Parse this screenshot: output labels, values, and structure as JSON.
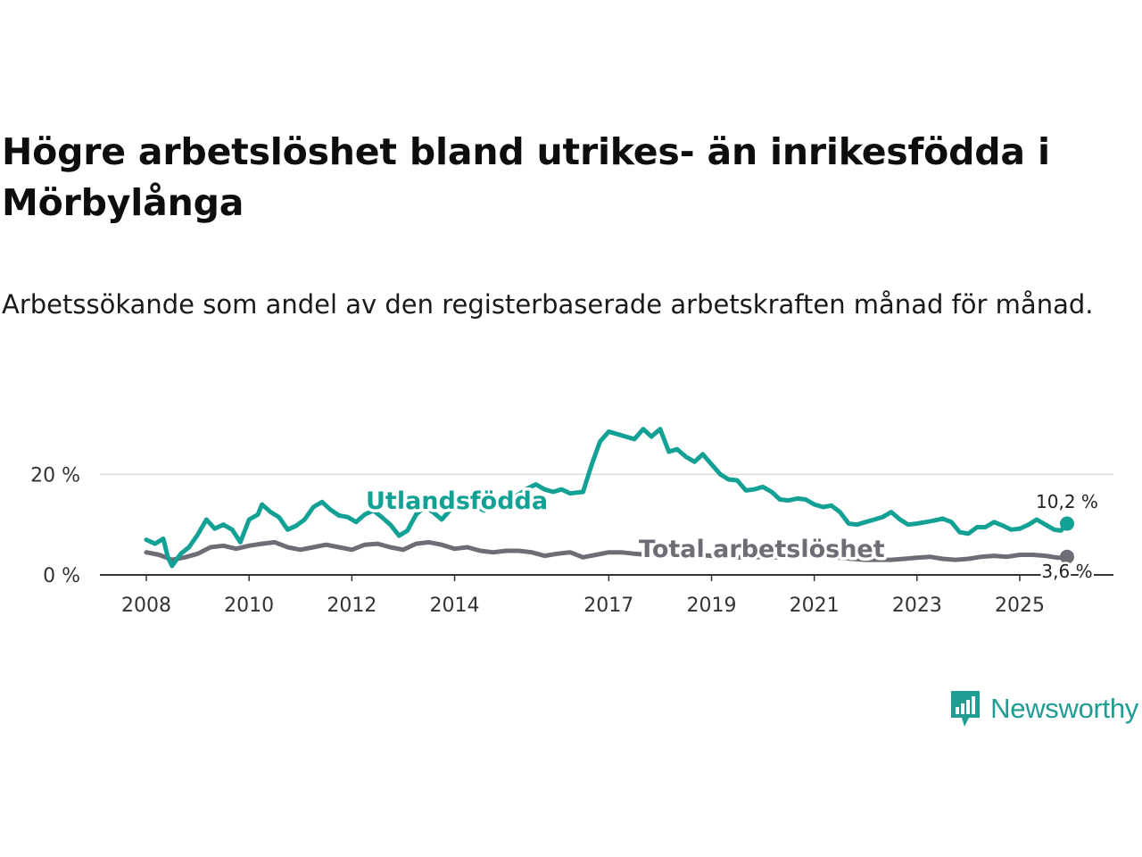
{
  "title": "Högre arbetslöshet bland utrikes- än inrikesfödda i Mörbylånga",
  "subtitle": "Arbetssökande som andel av den registerbaserade arbetskraften månad för månad.",
  "brand": {
    "name": "Newsworthy"
  },
  "colors": {
    "foreign": "#14a195",
    "total": "#6e6c74",
    "grid": "#dddddd",
    "axis": "#333333"
  },
  "chart_data": {
    "type": "line",
    "title": "Högre arbetslöshet bland utrikes- än inrikesfödda i Mörbylånga",
    "xlabel": "",
    "ylabel": "",
    "ylim": [
      0,
      30
    ],
    "x_range": [
      2008.0,
      2025.92
    ],
    "x_ticks": [
      "2008",
      "2010",
      "2012",
      "2014",
      "2017",
      "2019",
      "2021",
      "2023",
      "2025"
    ],
    "y_ticks": [
      {
        "value": 0,
        "label": "0 %"
      },
      {
        "value": 20,
        "label": "20 %"
      }
    ],
    "series": [
      {
        "name": "Utlandsfödda",
        "label": "Utlandsfödda",
        "color": "#14a195",
        "end_label": "10,2 %",
        "points": [
          [
            2008.0,
            7.0
          ],
          [
            2008.17,
            6.2
          ],
          [
            2008.33,
            7.2
          ],
          [
            2008.42,
            3.5
          ],
          [
            2008.5,
            1.8
          ],
          [
            2008.67,
            4.2
          ],
          [
            2008.83,
            5.5
          ],
          [
            2009.0,
            8.0
          ],
          [
            2009.17,
            11.0
          ],
          [
            2009.33,
            9.2
          ],
          [
            2009.5,
            10.0
          ],
          [
            2009.67,
            9.0
          ],
          [
            2009.83,
            6.5
          ],
          [
            2010.0,
            11.0
          ],
          [
            2010.17,
            12.0
          ],
          [
            2010.25,
            14.0
          ],
          [
            2010.42,
            12.5
          ],
          [
            2010.58,
            11.5
          ],
          [
            2010.75,
            9.0
          ],
          [
            2010.92,
            9.8
          ],
          [
            2011.08,
            11.0
          ],
          [
            2011.25,
            13.5
          ],
          [
            2011.42,
            14.5
          ],
          [
            2011.58,
            13.0
          ],
          [
            2011.75,
            11.8
          ],
          [
            2011.92,
            11.5
          ],
          [
            2012.08,
            10.5
          ],
          [
            2012.25,
            12.0
          ],
          [
            2012.42,
            12.8
          ],
          [
            2012.58,
            11.5
          ],
          [
            2012.75,
            10.0
          ],
          [
            2012.92,
            7.8
          ],
          [
            2013.08,
            8.8
          ],
          [
            2013.25,
            12.0
          ],
          [
            2013.42,
            13.5
          ],
          [
            2013.58,
            12.5
          ],
          [
            2013.75,
            11.0
          ],
          [
            2013.92,
            13.0
          ],
          [
            2014.08,
            14.5
          ],
          [
            2014.25,
            14.8
          ],
          [
            2014.42,
            13.5
          ],
          [
            2014.58,
            12.8
          ],
          [
            2014.75,
            14.0
          ],
          [
            2014.92,
            15.0
          ],
          [
            2015.08,
            15.2
          ],
          [
            2015.25,
            16.0
          ],
          [
            2015.42,
            17.2
          ],
          [
            2015.58,
            18.0
          ],
          [
            2015.75,
            17.0
          ],
          [
            2015.92,
            16.5
          ],
          [
            2016.08,
            17.0
          ],
          [
            2016.25,
            16.2
          ],
          [
            2016.5,
            16.5
          ],
          [
            2016.67,
            22.0
          ],
          [
            2016.83,
            26.5
          ],
          [
            2017.0,
            28.5
          ],
          [
            2017.17,
            28.0
          ],
          [
            2017.33,
            27.5
          ],
          [
            2017.5,
            27.0
          ],
          [
            2017.67,
            29.0
          ],
          [
            2017.83,
            27.5
          ],
          [
            2018.0,
            29.0
          ],
          [
            2018.17,
            24.5
          ],
          [
            2018.33,
            25.0
          ],
          [
            2018.5,
            23.5
          ],
          [
            2018.67,
            22.5
          ],
          [
            2018.83,
            24.0
          ],
          [
            2019.0,
            22.0
          ],
          [
            2019.17,
            20.0
          ],
          [
            2019.33,
            19.0
          ],
          [
            2019.5,
            18.8
          ],
          [
            2019.67,
            16.8
          ],
          [
            2019.83,
            17.0
          ],
          [
            2020.0,
            17.5
          ],
          [
            2020.17,
            16.5
          ],
          [
            2020.33,
            15.0
          ],
          [
            2020.5,
            14.8
          ],
          [
            2020.67,
            15.2
          ],
          [
            2020.83,
            15.0
          ],
          [
            2021.0,
            14.0
          ],
          [
            2021.17,
            13.5
          ],
          [
            2021.33,
            13.8
          ],
          [
            2021.5,
            12.5
          ],
          [
            2021.67,
            10.2
          ],
          [
            2021.83,
            10.0
          ],
          [
            2022.0,
            10.5
          ],
          [
            2022.17,
            11.0
          ],
          [
            2022.33,
            11.5
          ],
          [
            2022.5,
            12.5
          ],
          [
            2022.67,
            11.0
          ],
          [
            2022.83,
            10.0
          ],
          [
            2023.0,
            10.2
          ],
          [
            2023.17,
            10.5
          ],
          [
            2023.33,
            10.8
          ],
          [
            2023.5,
            11.2
          ],
          [
            2023.67,
            10.5
          ],
          [
            2023.83,
            8.5
          ],
          [
            2024.0,
            8.2
          ],
          [
            2024.17,
            9.5
          ],
          [
            2024.33,
            9.5
          ],
          [
            2024.5,
            10.5
          ],
          [
            2024.67,
            9.8
          ],
          [
            2024.83,
            9.0
          ],
          [
            2025.0,
            9.2
          ],
          [
            2025.17,
            10.0
          ],
          [
            2025.33,
            11.0
          ],
          [
            2025.5,
            10.0
          ],
          [
            2025.67,
            9.0
          ],
          [
            2025.8,
            8.8
          ],
          [
            2025.92,
            10.2
          ]
        ]
      },
      {
        "name": "Total arbetslöshet",
        "label": "Total arbetslöshet",
        "color": "#6e6c74",
        "end_label": "3,6 %",
        "points": [
          [
            2008.0,
            4.5
          ],
          [
            2008.25,
            4.0
          ],
          [
            2008.5,
            3.0
          ],
          [
            2008.75,
            3.5
          ],
          [
            2009.0,
            4.2
          ],
          [
            2009.25,
            5.5
          ],
          [
            2009.5,
            5.8
          ],
          [
            2009.75,
            5.2
          ],
          [
            2010.0,
            5.8
          ],
          [
            2010.25,
            6.2
          ],
          [
            2010.5,
            6.5
          ],
          [
            2010.75,
            5.5
          ],
          [
            2011.0,
            5.0
          ],
          [
            2011.25,
            5.5
          ],
          [
            2011.5,
            6.0
          ],
          [
            2011.75,
            5.5
          ],
          [
            2012.0,
            5.0
          ],
          [
            2012.25,
            6.0
          ],
          [
            2012.5,
            6.2
          ],
          [
            2012.75,
            5.5
          ],
          [
            2013.0,
            5.0
          ],
          [
            2013.25,
            6.2
          ],
          [
            2013.5,
            6.5
          ],
          [
            2013.75,
            6.0
          ],
          [
            2014.0,
            5.2
          ],
          [
            2014.25,
            5.5
          ],
          [
            2014.5,
            4.8
          ],
          [
            2014.75,
            4.5
          ],
          [
            2015.0,
            4.8
          ],
          [
            2015.25,
            4.8
          ],
          [
            2015.5,
            4.5
          ],
          [
            2015.75,
            3.8
          ],
          [
            2016.0,
            4.2
          ],
          [
            2016.25,
            4.5
          ],
          [
            2016.5,
            3.5
          ],
          [
            2016.75,
            4.0
          ],
          [
            2017.0,
            4.5
          ],
          [
            2017.25,
            4.5
          ],
          [
            2017.5,
            4.2
          ],
          [
            2017.75,
            4.0
          ],
          [
            2018.0,
            4.2
          ],
          [
            2018.25,
            4.0
          ],
          [
            2018.5,
            3.8
          ],
          [
            2018.75,
            4.0
          ],
          [
            2019.0,
            3.8
          ],
          [
            2019.25,
            3.5
          ],
          [
            2019.5,
            3.5
          ],
          [
            2019.75,
            3.4
          ],
          [
            2020.0,
            3.6
          ],
          [
            2020.25,
            3.5
          ],
          [
            2020.5,
            3.4
          ],
          [
            2020.75,
            3.6
          ],
          [
            2021.0,
            3.8
          ],
          [
            2021.25,
            3.6
          ],
          [
            2021.5,
            3.4
          ],
          [
            2021.75,
            3.2
          ],
          [
            2022.0,
            3.0
          ],
          [
            2022.25,
            3.0
          ],
          [
            2022.5,
            3.0
          ],
          [
            2022.75,
            3.2
          ],
          [
            2023.0,
            3.4
          ],
          [
            2023.25,
            3.6
          ],
          [
            2023.5,
            3.2
          ],
          [
            2023.75,
            3.0
          ],
          [
            2024.0,
            3.2
          ],
          [
            2024.25,
            3.6
          ],
          [
            2024.5,
            3.8
          ],
          [
            2024.75,
            3.6
          ],
          [
            2025.0,
            4.0
          ],
          [
            2025.25,
            4.0
          ],
          [
            2025.5,
            3.8
          ],
          [
            2025.75,
            3.4
          ],
          [
            2025.92,
            3.6
          ]
        ]
      }
    ]
  }
}
